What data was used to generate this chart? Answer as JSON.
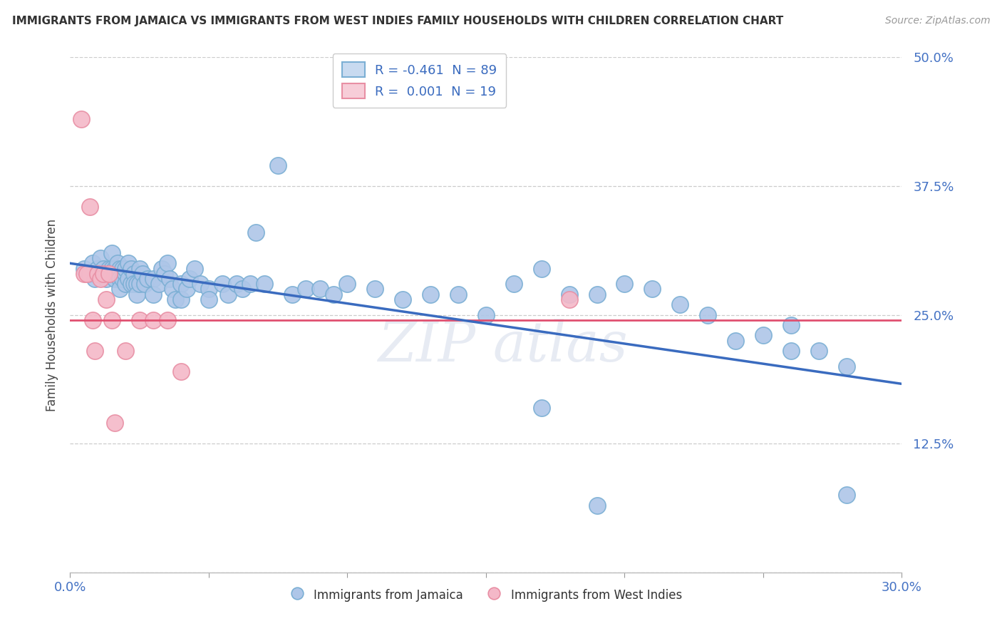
{
  "title": "IMMIGRANTS FROM JAMAICA VS IMMIGRANTS FROM WEST INDIES FAMILY HOUSEHOLDS WITH CHILDREN CORRELATION CHART",
  "source": "Source: ZipAtlas.com",
  "xlabel_jamaica": "Immigrants from Jamaica",
  "xlabel_westindies": "Immigrants from West Indies",
  "ylabel": "Family Households with Children",
  "xlim": [
    0.0,
    0.3
  ],
  "ylim": [
    0.0,
    0.5
  ],
  "yticks": [
    0.0,
    0.125,
    0.25,
    0.375,
    0.5
  ],
  "ytick_labels": [
    "",
    "12.5%",
    "25.0%",
    "37.5%",
    "50.0%"
  ],
  "legend_blue_label": "R = -0.461  N = 89",
  "legend_pink_label": "R =  0.001  N = 19",
  "blue_fill_color": "#aec6e8",
  "blue_edge_color": "#7bafd4",
  "pink_fill_color": "#f4b8c8",
  "pink_edge_color": "#e88fa4",
  "blue_line_color": "#3a6bbf",
  "pink_line_color": "#e05070",
  "grid_color": "#cccccc",
  "axis_label_color": "#4472c4",
  "title_color": "#333333",
  "blue_trend_x0": 0.0,
  "blue_trend_y0": 0.3,
  "blue_trend_x1": 0.3,
  "blue_trend_y1": 0.183,
  "pink_trend_y": 0.245,
  "blue_x": [
    0.005,
    0.007,
    0.008,
    0.009,
    0.01,
    0.011,
    0.012,
    0.013,
    0.014,
    0.015,
    0.015,
    0.015,
    0.016,
    0.016,
    0.017,
    0.017,
    0.018,
    0.018,
    0.018,
    0.019,
    0.019,
    0.02,
    0.02,
    0.02,
    0.021,
    0.021,
    0.022,
    0.022,
    0.023,
    0.023,
    0.024,
    0.024,
    0.025,
    0.025,
    0.026,
    0.027,
    0.028,
    0.03,
    0.03,
    0.032,
    0.033,
    0.034,
    0.035,
    0.036,
    0.037,
    0.038,
    0.04,
    0.04,
    0.042,
    0.043,
    0.045,
    0.047,
    0.05,
    0.05,
    0.055,
    0.057,
    0.06,
    0.062,
    0.065,
    0.067,
    0.07,
    0.075,
    0.08,
    0.085,
    0.09,
    0.095,
    0.1,
    0.11,
    0.12,
    0.13,
    0.14,
    0.15,
    0.16,
    0.17,
    0.18,
    0.19,
    0.2,
    0.21,
    0.22,
    0.23,
    0.24,
    0.25,
    0.26,
    0.27,
    0.28,
    0.17,
    0.19,
    0.26,
    0.28
  ],
  "blue_y": [
    0.295,
    0.29,
    0.3,
    0.285,
    0.295,
    0.305,
    0.295,
    0.285,
    0.295,
    0.31,
    0.29,
    0.295,
    0.295,
    0.285,
    0.3,
    0.29,
    0.295,
    0.285,
    0.275,
    0.295,
    0.285,
    0.29,
    0.28,
    0.295,
    0.3,
    0.285,
    0.295,
    0.28,
    0.29,
    0.28,
    0.28,
    0.27,
    0.295,
    0.28,
    0.29,
    0.28,
    0.285,
    0.285,
    0.27,
    0.28,
    0.295,
    0.29,
    0.3,
    0.285,
    0.275,
    0.265,
    0.28,
    0.265,
    0.275,
    0.285,
    0.295,
    0.28,
    0.275,
    0.265,
    0.28,
    0.27,
    0.28,
    0.275,
    0.28,
    0.33,
    0.28,
    0.395,
    0.27,
    0.275,
    0.275,
    0.27,
    0.28,
    0.275,
    0.265,
    0.27,
    0.27,
    0.25,
    0.28,
    0.295,
    0.27,
    0.27,
    0.28,
    0.275,
    0.26,
    0.25,
    0.225,
    0.23,
    0.215,
    0.215,
    0.2,
    0.16,
    0.065,
    0.24,
    0.075
  ],
  "pink_x": [
    0.004,
    0.005,
    0.006,
    0.007,
    0.008,
    0.009,
    0.01,
    0.011,
    0.012,
    0.013,
    0.014,
    0.015,
    0.016,
    0.02,
    0.025,
    0.03,
    0.035,
    0.04,
    0.18
  ],
  "pink_y": [
    0.44,
    0.29,
    0.29,
    0.355,
    0.245,
    0.215,
    0.29,
    0.285,
    0.29,
    0.265,
    0.29,
    0.245,
    0.145,
    0.215,
    0.245,
    0.245,
    0.245,
    0.195,
    0.265
  ]
}
